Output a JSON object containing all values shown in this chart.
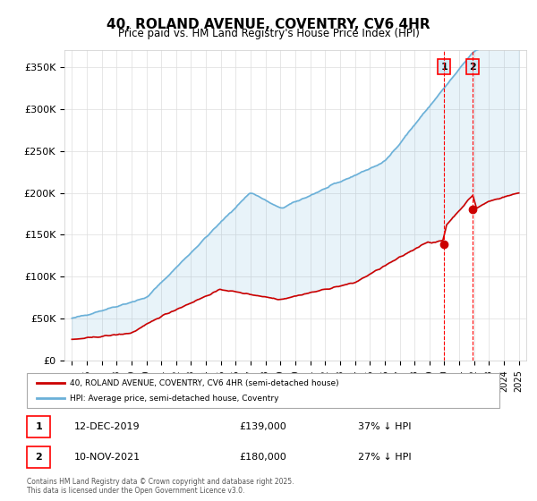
{
  "title": "40, ROLAND AVENUE, COVENTRY, CV6 4HR",
  "subtitle": "Price paid vs. HM Land Registry's House Price Index (HPI)",
  "footer": "Contains HM Land Registry data © Crown copyright and database right 2025.\nThis data is licensed under the Open Government Licence v3.0.",
  "hpi_color": "#6ab0d8",
  "price_color": "#cc0000",
  "marker1_date_idx": 25,
  "marker2_date_idx": 27,
  "marker1_label": "12-DEC-2019",
  "marker1_price": "£139,000",
  "marker1_note": "37% ↓ HPI",
  "marker2_label": "10-NOV-2021",
  "marker2_price": "£180,000",
  "marker2_note": "27% ↓ HPI",
  "ylim": [
    0,
    370000
  ],
  "yticks": [
    0,
    50000,
    100000,
    150000,
    200000,
    250000,
    300000,
    350000
  ],
  "ytick_labels": [
    "£0",
    "£50K",
    "£100K",
    "£150K",
    "£200K",
    "£250K",
    "£300K",
    "£350K"
  ],
  "background_color": "#ffffff",
  "grid_color": "#dddddd",
  "legend_label_red": "40, ROLAND AVENUE, COVENTRY, CV6 4HR (semi-detached house)",
  "legend_label_blue": "HPI: Average price, semi-detached house, Coventry"
}
